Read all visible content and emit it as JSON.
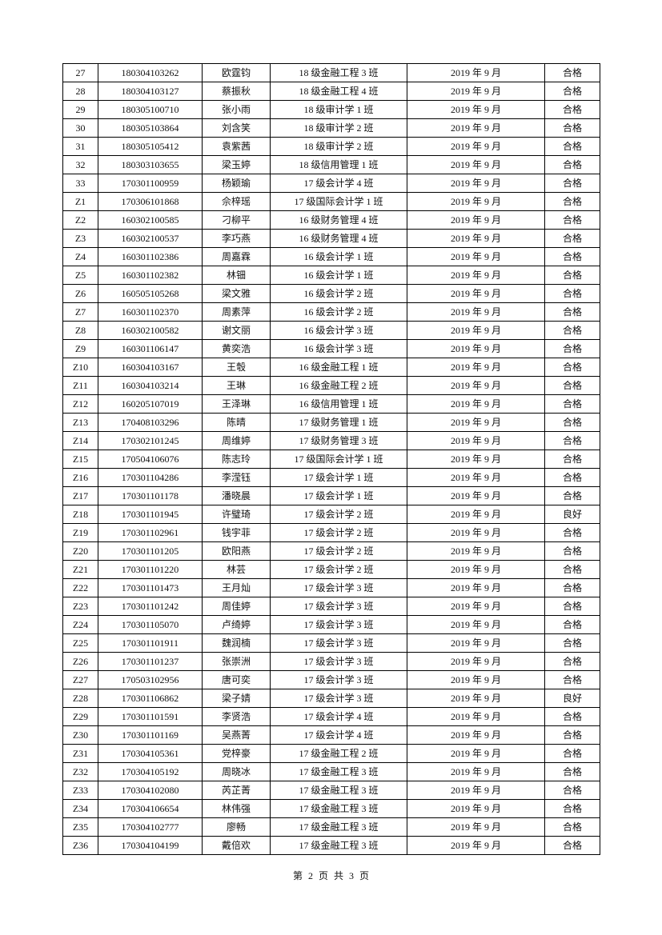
{
  "rows": [
    [
      "27",
      "180304103262",
      "欧霆钧",
      "18 级金融工程 3 班",
      "2019 年 9 月",
      "合格"
    ],
    [
      "28",
      "180304103127",
      "蔡振秋",
      "18 级金融工程 4 班",
      "2019 年 9 月",
      "合格"
    ],
    [
      "29",
      "180305100710",
      "张小雨",
      "18 级审计学 1 班",
      "2019 年 9 月",
      "合格"
    ],
    [
      "30",
      "180305103864",
      "刘含笑",
      "18 级审计学 2 班",
      "2019 年 9 月",
      "合格"
    ],
    [
      "31",
      "180305105412",
      "袁紫茜",
      "18 级审计学 2 班",
      "2019 年 9 月",
      "合格"
    ],
    [
      "32",
      "180303103655",
      "梁玉婷",
      "18 级信用管理 1 班",
      "2019 年 9 月",
      "合格"
    ],
    [
      "33",
      "170301100959",
      "杨颖瑜",
      "17 级会计学 4 班",
      "2019 年 9 月",
      "合格"
    ],
    [
      "Z1",
      "170306101868",
      "佘梓瑶",
      "17 级国际会计学 1 班",
      "2019 年 9 月",
      "合格"
    ],
    [
      "Z2",
      "160302100585",
      "刁柳平",
      "16 级财务管理 4 班",
      "2019 年 9 月",
      "合格"
    ],
    [
      "Z3",
      "160302100537",
      "李巧燕",
      "16 级财务管理 4 班",
      "2019 年 9 月",
      "合格"
    ],
    [
      "Z4",
      "160301102386",
      "周嘉霖",
      "16 级会计学 1 班",
      "2019 年 9 月",
      "合格"
    ],
    [
      "Z5",
      "160301102382",
      "林钿",
      "16 级会计学 1 班",
      "2019 年 9 月",
      "合格"
    ],
    [
      "Z6",
      "160505105268",
      "梁文雅",
      "16 级会计学 2 班",
      "2019 年 9 月",
      "合格"
    ],
    [
      "Z7",
      "160301102370",
      "周素萍",
      "16 级会计学 2 班",
      "2019 年 9 月",
      "合格"
    ],
    [
      "Z8",
      "160302100582",
      "谢文丽",
      "16 级会计学 3 班",
      "2019 年 9 月",
      "合格"
    ],
    [
      "Z9",
      "160301106147",
      "黄奕浩",
      "16 级会计学 3 班",
      "2019 年 9 月",
      "合格"
    ],
    [
      "Z10",
      "160304103167",
      "王彀",
      "16 级金融工程 1 班",
      "2019 年 9 月",
      "合格"
    ],
    [
      "Z11",
      "160304103214",
      "王琳",
      "16 级金融工程 2 班",
      "2019 年 9 月",
      "合格"
    ],
    [
      "Z12",
      "160205107019",
      "王泽琳",
      "16 级信用管理 1 班",
      "2019 年 9 月",
      "合格"
    ],
    [
      "Z13",
      "170408103296",
      "陈晴",
      "17 级财务管理 1 班",
      "2019 年 9 月",
      "合格"
    ],
    [
      "Z14",
      "170302101245",
      "周维婷",
      "17 级财务管理 3 班",
      "2019 年 9 月",
      "合格"
    ],
    [
      "Z15",
      "170504106076",
      "陈志玲",
      "17 级国际会计学 1 班",
      "2019 年 9 月",
      "合格"
    ],
    [
      "Z16",
      "170301104286",
      "李滢钰",
      "17 级会计学 1 班",
      "2019 年 9 月",
      "合格"
    ],
    [
      "Z17",
      "170301101178",
      "潘晓晨",
      "17 级会计学 1 班",
      "2019 年 9 月",
      "合格"
    ],
    [
      "Z18",
      "170301101945",
      "许璧琦",
      "17 级会计学 2 班",
      "2019 年 9 月",
      "良好"
    ],
    [
      "Z19",
      "170301102961",
      "钱宇菲",
      "17 级会计学 2 班",
      "2019 年 9 月",
      "合格"
    ],
    [
      "Z20",
      "170301101205",
      "欧阳燕",
      "17 级会计学 2 班",
      "2019 年 9 月",
      "合格"
    ],
    [
      "Z21",
      "170301101220",
      "林芸",
      "17 级会计学 2 班",
      "2019 年 9 月",
      "合格"
    ],
    [
      "Z22",
      "170301101473",
      "王月灿",
      "17 级会计学 3 班",
      "2019 年 9 月",
      "合格"
    ],
    [
      "Z23",
      "170301101242",
      "周佳婷",
      "17 级会计学 3 班",
      "2019 年 9 月",
      "合格"
    ],
    [
      "Z24",
      "170301105070",
      "卢绮婷",
      "17 级会计学 3 班",
      "2019 年 9 月",
      "合格"
    ],
    [
      "Z25",
      "170301101911",
      "魏润楠",
      "17 级会计学 3 班",
      "2019 年 9 月",
      "合格"
    ],
    [
      "Z26",
      "170301101237",
      "张崇洲",
      "17 级会计学 3 班",
      "2019 年 9 月",
      "合格"
    ],
    [
      "Z27",
      "170503102956",
      "唐可奕",
      "17 级会计学 3 班",
      "2019 年 9 月",
      "合格"
    ],
    [
      "Z28",
      "170301106862",
      "梁子婧",
      "17 级会计学 3 班",
      "2019 年 9 月",
      "良好"
    ],
    [
      "Z29",
      "170301101591",
      "李贤浩",
      "17 级会计学 4 班",
      "2019 年 9 月",
      "合格"
    ],
    [
      "Z30",
      "170301101169",
      "吴燕菁",
      "17 级会计学 4 班",
      "2019 年 9 月",
      "合格"
    ],
    [
      "Z31",
      "170304105361",
      "党梓豪",
      "17 级金融工程 2 班",
      "2019 年 9 月",
      "合格"
    ],
    [
      "Z32",
      "170304105192",
      "周晓冰",
      "17 级金融工程 3 班",
      "2019 年 9 月",
      "合格"
    ],
    [
      "Z33",
      "170304102080",
      "芮芷菁",
      "17 级金融工程 3 班",
      "2019 年 9 月",
      "合格"
    ],
    [
      "Z34",
      "170304106654",
      "林伟强",
      "17 级金融工程 3 班",
      "2019 年 9 月",
      "合格"
    ],
    [
      "Z35",
      "170304102777",
      "廖畅",
      "17 级金融工程 3 班",
      "2019 年 9 月",
      "合格"
    ],
    [
      "Z36",
      "170304104199",
      "戴倍欢",
      "17 级金融工程 3 班",
      "2019 年 9 月",
      "合格"
    ]
  ],
  "footer": "第 2 页 共 3 页"
}
